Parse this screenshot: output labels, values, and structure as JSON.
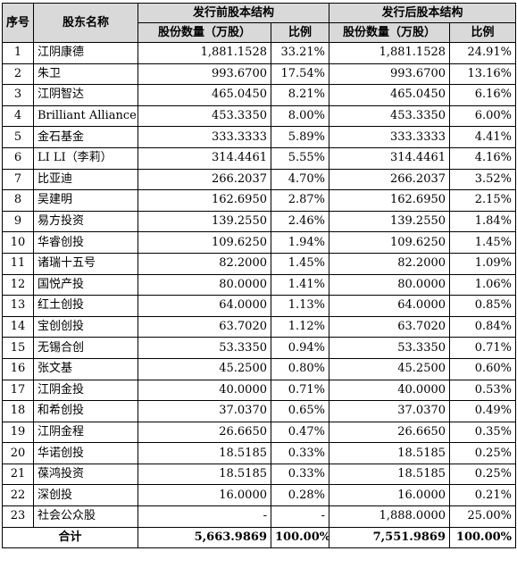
{
  "table": {
    "headers": {
      "seq": "序号",
      "name": "股东名称",
      "before_group": "发行前股本结构",
      "after_group": "发行后股本结构",
      "shares_wan": "股份数量（万股）",
      "ratio": "比例"
    },
    "rows": [
      {
        "seq": "1",
        "name": "江阴康德",
        "before_shares": "1,881.1528",
        "before_ratio": "33.21%",
        "after_shares": "1,881.1528",
        "after_ratio": "24.91%"
      },
      {
        "seq": "2",
        "name": "朱卫",
        "before_shares": "993.6700",
        "before_ratio": "17.54%",
        "after_shares": "993.6700",
        "after_ratio": "13.16%"
      },
      {
        "seq": "3",
        "name": "江阴智达",
        "before_shares": "465.0450",
        "before_ratio": "8.21%",
        "after_shares": "465.0450",
        "after_ratio": "6.16%"
      },
      {
        "seq": "4",
        "name": "Brilliant Alliance",
        "before_shares": "453.3350",
        "before_ratio": "8.00%",
        "after_shares": "453.3350",
        "after_ratio": "6.00%"
      },
      {
        "seq": "5",
        "name": "金石基金",
        "before_shares": "333.3333",
        "before_ratio": "5.89%",
        "after_shares": "333.3333",
        "after_ratio": "4.41%"
      },
      {
        "seq": "6",
        "name": "LI LI（李莉）",
        "before_shares": "314.4461",
        "before_ratio": "5.55%",
        "after_shares": "314.4461",
        "after_ratio": "4.16%"
      },
      {
        "seq": "7",
        "name": "比亚迪",
        "before_shares": "266.2037",
        "before_ratio": "4.70%",
        "after_shares": "266.2037",
        "after_ratio": "3.52%"
      },
      {
        "seq": "8",
        "name": "吴建明",
        "before_shares": "162.6950",
        "before_ratio": "2.87%",
        "after_shares": "162.6950",
        "after_ratio": "2.15%"
      },
      {
        "seq": "9",
        "name": "易方投资",
        "before_shares": "139.2550",
        "before_ratio": "2.46%",
        "after_shares": "139.2550",
        "after_ratio": "1.84%"
      },
      {
        "seq": "10",
        "name": "华睿创投",
        "before_shares": "109.6250",
        "before_ratio": "1.94%",
        "after_shares": "109.6250",
        "after_ratio": "1.45%"
      },
      {
        "seq": "11",
        "name": "诸瑞十五号",
        "before_shares": "82.2000",
        "before_ratio": "1.45%",
        "after_shares": "82.2000",
        "after_ratio": "1.09%"
      },
      {
        "seq": "12",
        "name": "国悦产投",
        "before_shares": "80.0000",
        "before_ratio": "1.41%",
        "after_shares": "80.0000",
        "after_ratio": "1.06%"
      },
      {
        "seq": "13",
        "name": "红土创投",
        "before_shares": "64.0000",
        "before_ratio": "1.13%",
        "after_shares": "64.0000",
        "after_ratio": "0.85%"
      },
      {
        "seq": "14",
        "name": "宝创创投",
        "before_shares": "63.7020",
        "before_ratio": "1.12%",
        "after_shares": "63.7020",
        "after_ratio": "0.84%"
      },
      {
        "seq": "15",
        "name": "无锡合创",
        "before_shares": "53.3350",
        "before_ratio": "0.94%",
        "after_shares": "53.3350",
        "after_ratio": "0.71%"
      },
      {
        "seq": "16",
        "name": "张文基",
        "before_shares": "45.2500",
        "before_ratio": "0.80%",
        "after_shares": "45.2500",
        "after_ratio": "0.60%"
      },
      {
        "seq": "17",
        "name": "江阴金投",
        "before_shares": "40.0000",
        "before_ratio": "0.71%",
        "after_shares": "40.0000",
        "after_ratio": "0.53%"
      },
      {
        "seq": "18",
        "name": "和希创投",
        "before_shares": "37.0370",
        "before_ratio": "0.65%",
        "after_shares": "37.0370",
        "after_ratio": "0.49%"
      },
      {
        "seq": "19",
        "name": "江阴金程",
        "before_shares": "26.6650",
        "before_ratio": "0.47%",
        "after_shares": "26.6650",
        "after_ratio": "0.35%"
      },
      {
        "seq": "20",
        "name": "华诺创投",
        "before_shares": "18.5185",
        "before_ratio": "0.33%",
        "after_shares": "18.5185",
        "after_ratio": "0.25%"
      },
      {
        "seq": "21",
        "name": "葆鸿投资",
        "before_shares": "18.5185",
        "before_ratio": "0.33%",
        "after_shares": "18.5185",
        "after_ratio": "0.25%"
      },
      {
        "seq": "22",
        "name": "深创投",
        "before_shares": "16.0000",
        "before_ratio": "0.28%",
        "after_shares": "16.0000",
        "after_ratio": "0.21%"
      },
      {
        "seq": "23",
        "name": "社会公众股",
        "before_shares": "-",
        "before_ratio": "-",
        "after_shares": "1,888.0000",
        "after_ratio": "25.00%"
      }
    ],
    "total": {
      "label": "合计",
      "before_shares": "5,663.9869",
      "before_ratio": "100.00%",
      "after_shares": "7,551.9869",
      "after_ratio": "100.00%"
    }
  }
}
